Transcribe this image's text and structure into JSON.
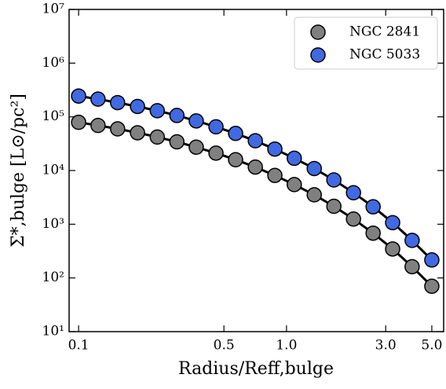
{
  "chart_data": {
    "type": "scatter",
    "x_label": "Radius/Reff,bulge",
    "y_label": "Σ*,bulge [L⊙/pc²]",
    "x": [
      0.1,
      0.124,
      0.154,
      0.192,
      0.239,
      0.297,
      0.368,
      0.458,
      0.569,
      0.708,
      0.879,
      1.09,
      1.36,
      1.69,
      2.1,
      2.61,
      3.24,
      4.02,
      5.0
    ],
    "series": [
      {
        "name": "NGC 2841",
        "color": "#808080",
        "values": [
          79000,
          69100,
          59600,
          50500,
          42000,
          34200,
          27200,
          21100,
          15900,
          11600,
          8110,
          5470,
          3530,
          2160,
          1250,
          682,
          346,
          162,
          70
        ]
      },
      {
        "name": "NGC 5033",
        "color": "#4169e1",
        "values": [
          244000,
          214000,
          184000,
          156000,
          130000,
          106000,
          84000,
          65200,
          49100,
          35800,
          25100,
          16900,
          10900,
          6670,
          3860,
          2110,
          1070,
          500,
          216
        ]
      }
    ],
    "line_color": "#000000",
    "xlim": [
      0.09,
      5.7
    ],
    "ylim": [
      10,
      10000000
    ],
    "xscale": "log",
    "yscale": "log",
    "xticks": [
      0.1,
      0.5,
      {
        "value": 1,
        "label": "1.0"
      },
      {
        "value": 3,
        "label": "3.0"
      },
      {
        "value": 5,
        "label": "5.0"
      }
    ],
    "yticks": [
      {
        "value": 10,
        "label": "10¹"
      },
      {
        "value": 100,
        "label": "10²"
      },
      {
        "value": 1000,
        "label": "10³"
      },
      {
        "value": 10000,
        "label": "10⁴"
      },
      {
        "value": 100000,
        "label": "10⁵"
      },
      {
        "value": 1000000,
        "label": "10⁶"
      },
      {
        "value": 10000000,
        "label": "10⁷"
      }
    ],
    "legend": "upper right"
  }
}
